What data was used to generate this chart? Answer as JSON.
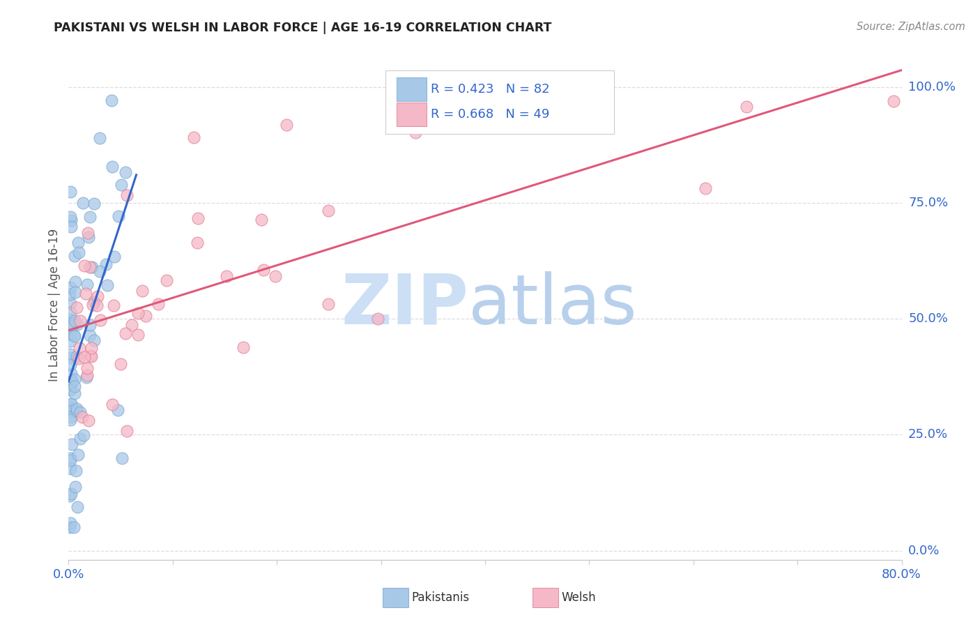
{
  "title": "PAKISTANI VS WELSH IN LABOR FORCE | AGE 16-19 CORRELATION CHART",
  "source": "Source: ZipAtlas.com",
  "ylabel": "In Labor Force | Age 16-19",
  "ytick_labels": [
    "0.0%",
    "25.0%",
    "50.0%",
    "75.0%",
    "100.0%"
  ],
  "ytick_positions": [
    0.0,
    0.25,
    0.5,
    0.75,
    1.0
  ],
  "xlim": [
    0.0,
    0.8
  ],
  "ylim": [
    -0.02,
    1.08
  ],
  "pakistanis_R": "0.423",
  "pakistanis_N": "82",
  "welsh_R": "0.668",
  "welsh_N": "49",
  "pakistanis_color": "#a8c8e8",
  "pakistanis_edge_color": "#7aaad0",
  "pakistanis_line_color": "#3366cc",
  "welsh_color": "#f5b8c8",
  "welsh_edge_color": "#e08090",
  "welsh_line_color": "#e05878",
  "legend_color": "#3366cc",
  "watermark_zip_color": "#ccdff5",
  "watermark_atlas_color": "#b8d0ec",
  "grid_color": "#dddddd",
  "spine_color": "#cccccc",
  "axis_label_color": "#3366cc",
  "title_color": "#222222",
  "ylabel_color": "#555555"
}
